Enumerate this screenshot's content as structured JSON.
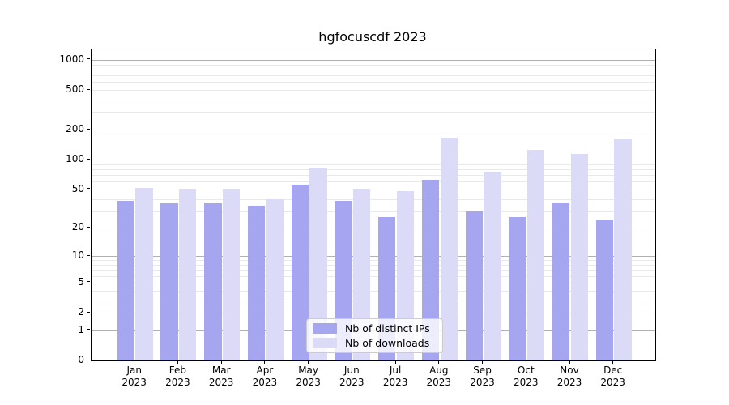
{
  "title": "hgfocuscdf 2023",
  "chart_data": {
    "type": "bar",
    "title": "hgfocuscdf 2023",
    "categories": [
      "Jan 2023",
      "Feb 2023",
      "Mar 2023",
      "Apr 2023",
      "May 2023",
      "Jun 2023",
      "Jul 2023",
      "Aug 2023",
      "Sep 2023",
      "Oct 2023",
      "Nov 2023",
      "Dec 2023"
    ],
    "series": [
      {
        "name": "Nb of distinct IPs",
        "color": "#a5a5f0",
        "values": [
          38,
          36,
          36,
          34,
          56,
          38,
          26,
          62,
          30,
          26,
          37,
          24
        ]
      },
      {
        "name": "Nb of downloads",
        "color": "#dbdbf8",
        "values": [
          52,
          51,
          51,
          40,
          81,
          51,
          48,
          167,
          76,
          126,
          114,
          164
        ]
      }
    ],
    "xlabel": "",
    "ylabel": "",
    "yscale": "log1p",
    "yticks": [
      0,
      1,
      2,
      5,
      10,
      20,
      50,
      100,
      200,
      500,
      1000
    ],
    "ytick_labels": [
      "0",
      "1",
      "2",
      "5",
      "10",
      "20",
      "50",
      "100",
      "200",
      "500",
      "1000"
    ],
    "ylim": [
      0,
      1260
    ],
    "grid": true,
    "legend_position": "lower center"
  },
  "colors": {
    "major_grid": "#b0b0b0",
    "minor_grid": "#e9e9e9",
    "spine": "#000000",
    "legend_border": "#cccccc"
  }
}
